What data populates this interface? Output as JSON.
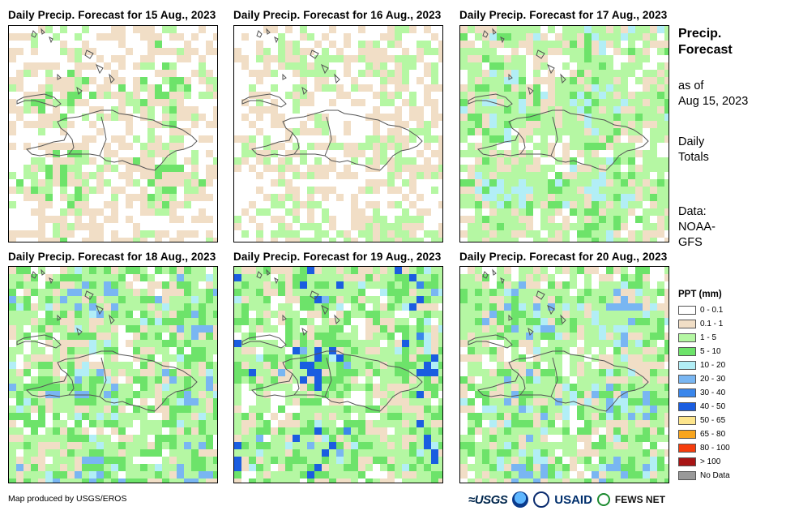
{
  "panels": [
    {
      "title": "Daily Precip. Forecast for 15 Aug., 2023"
    },
    {
      "title": "Daily Precip. Forecast for 16 Aug., 2023"
    },
    {
      "title": "Daily Precip. Forecast for 17 Aug., 2023"
    },
    {
      "title": "Daily Precip. Forecast for 18 Aug., 2023"
    },
    {
      "title": "Daily Precip. Forecast for 19 Aug., 2023"
    },
    {
      "title": "Daily Precip. Forecast for 20 Aug., 2023"
    }
  ],
  "side": {
    "title": "Precip.\nForecast",
    "asof": "as of\nAug 15, 2023",
    "totals": "Daily\nTotals",
    "source": "Data:\nNOAA-\nGFS"
  },
  "legend": {
    "title": "PPT (mm)",
    "items": [
      {
        "label": "0 - 0.1",
        "color": "#ffffff"
      },
      {
        "label": "0.1 - 1",
        "color": "#f1dec6"
      },
      {
        "label": "1 - 5",
        "color": "#b5f7a3"
      },
      {
        "label": "5 - 10",
        "color": "#6de36a"
      },
      {
        "label": "10 - 20",
        "color": "#b2eef6"
      },
      {
        "label": "20 - 30",
        "color": "#79b6f2"
      },
      {
        "label": "30 - 40",
        "color": "#3a86eb"
      },
      {
        "label": "40 - 50",
        "color": "#1a5de0"
      },
      {
        "label": "50 - 65",
        "color": "#fde58c"
      },
      {
        "label": "65 - 80",
        "color": "#f8a51e"
      },
      {
        "label": "80 - 100",
        "color": "#f53d0d"
      },
      {
        "label": "> 100",
        "color": "#a81515"
      },
      {
        "label": "No Data",
        "color": "#999999"
      }
    ]
  },
  "footer": {
    "credit": "Map produced by USGS/EROS",
    "logos": {
      "usgs": "≈USGS",
      "usaid": "USAID",
      "fews": "FEWS NET"
    }
  },
  "panel_fields": [
    {
      "base": 1,
      "seed": 11,
      "w": [
        0.4,
        0.4,
        0.18,
        0.02,
        0,
        0,
        0,
        0
      ]
    },
    {
      "base": 1,
      "seed": 23,
      "w": [
        0.45,
        0.35,
        0.2,
        0,
        0,
        0,
        0,
        0
      ]
    },
    {
      "base": 2,
      "seed": 37,
      "w": [
        0.1,
        0.22,
        0.5,
        0.12,
        0.06,
        0,
        0,
        0
      ]
    },
    {
      "base": 2,
      "seed": 41,
      "w": [
        0.1,
        0.18,
        0.38,
        0.26,
        0.07,
        0.01,
        0,
        0
      ]
    },
    {
      "base": 2,
      "seed": 53,
      "w": [
        0.08,
        0.18,
        0.42,
        0.24,
        0.05,
        0.01,
        0.01,
        0.01
      ]
    },
    {
      "base": 2,
      "seed": 67,
      "w": [
        0.05,
        0.2,
        0.45,
        0.2,
        0.09,
        0.01,
        0,
        0
      ]
    }
  ]
}
